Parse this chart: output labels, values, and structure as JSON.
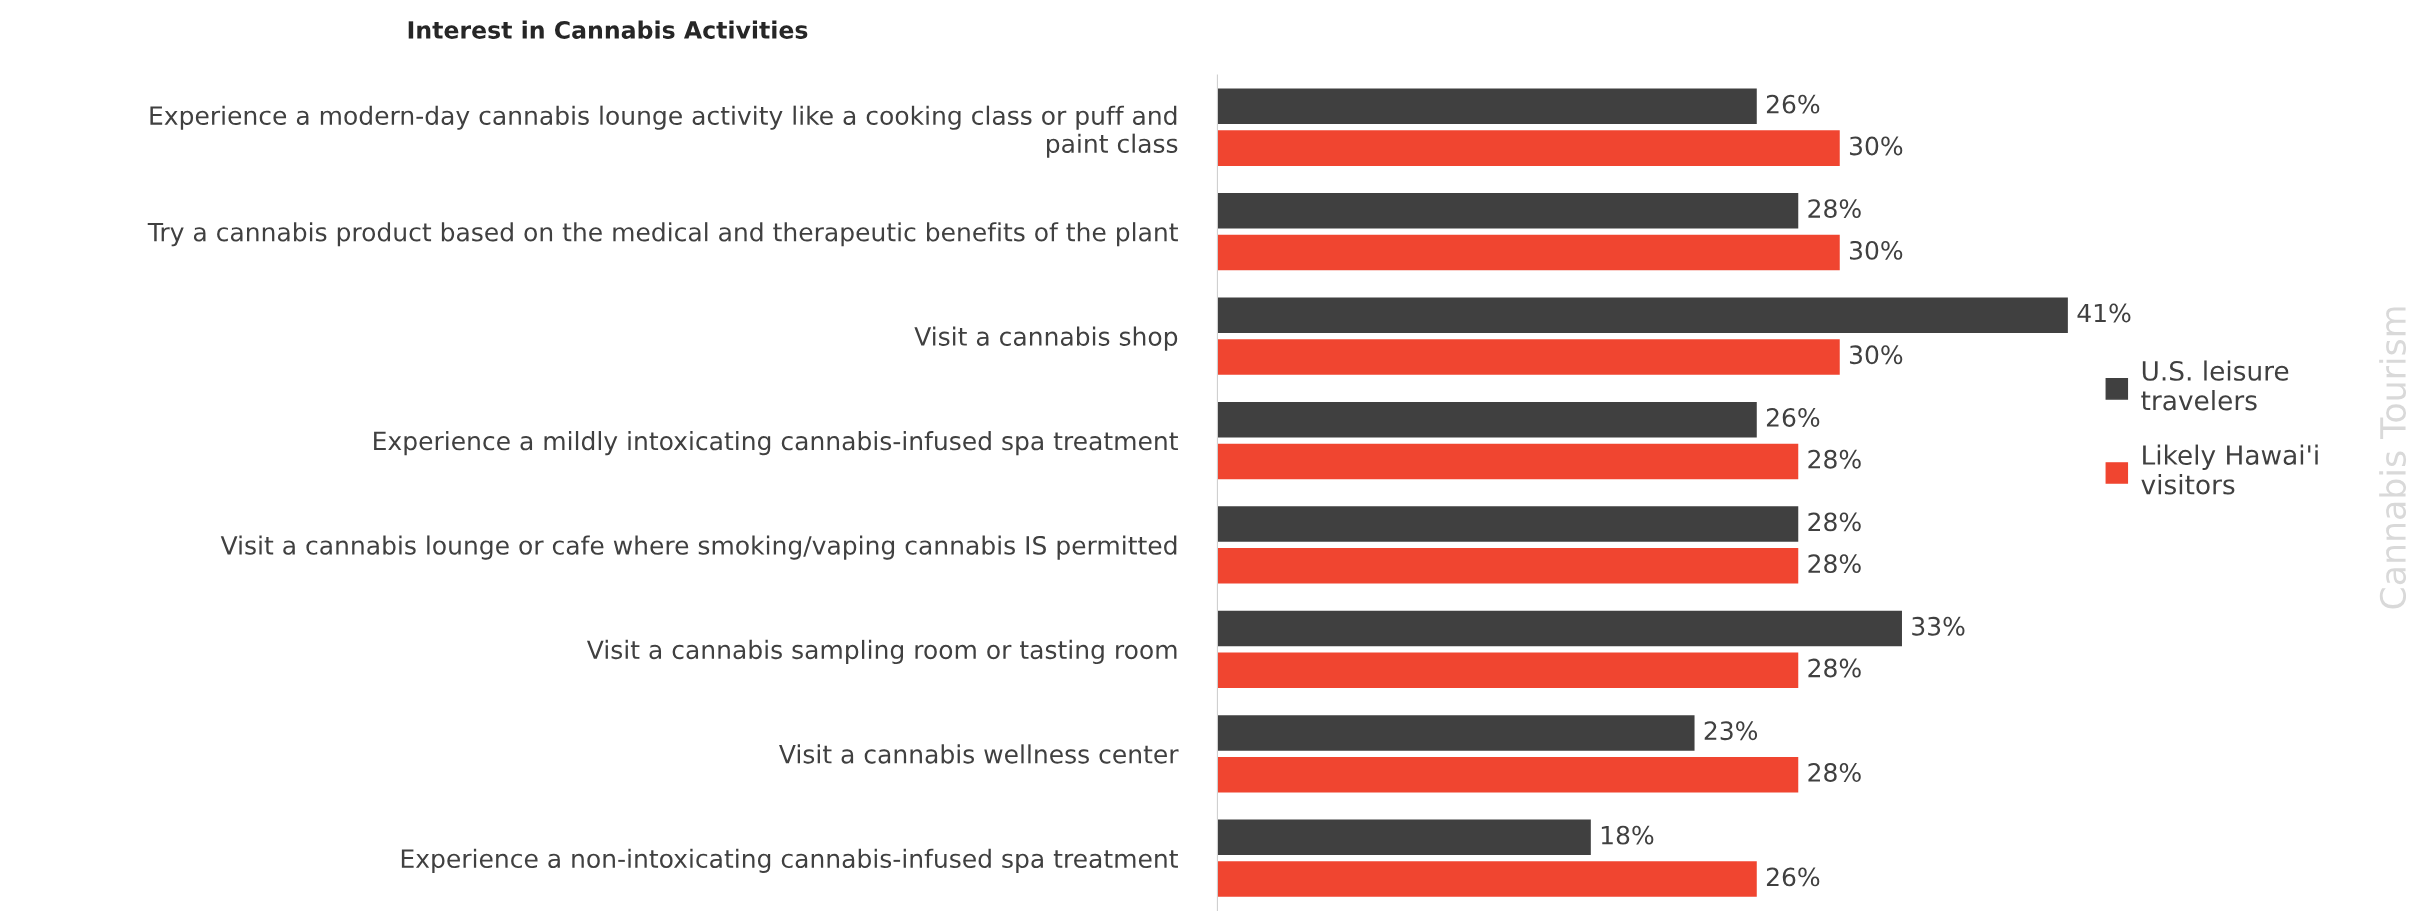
{
  "chart_data": {
    "type": "bar",
    "orientation": "horizontal",
    "title": "Interest in Cannabis Activities",
    "categories": [
      "Experience a modern-day cannabis lounge activity like a cooking class or puff and\npaint class",
      "Try a cannabis product based on the medical and therapeutic benefits of the plant",
      "Visit a cannabis shop",
      "Experience a mildly intoxicating cannabis-infused spa treatment",
      "Visit a cannabis lounge or cafe where smoking/vaping cannabis IS permitted",
      "Visit a cannabis sampling room or tasting room",
      "Visit a cannabis wellness center",
      "Experience a non-intoxicating cannabis-infused spa treatment"
    ],
    "series": [
      {
        "name": "U.S. leisure\ntravelers",
        "color": "#404040",
        "values": [
          26,
          28,
          41,
          26,
          28,
          33,
          23,
          18
        ],
        "value_labels": [
          "26%",
          "28%",
          "41%",
          "26%",
          "28%",
          "33%",
          "23%",
          "18%"
        ]
      },
      {
        "name": "Likely Hawai'i\nvisitors",
        "color": "#f04530",
        "values": [
          30,
          30,
          30,
          28,
          28,
          28,
          28,
          26
        ],
        "value_labels": [
          "30%",
          "30%",
          "30%",
          "28%",
          "28%",
          "28%",
          "28%",
          "26%"
        ]
      }
    ],
    "legend": "right",
    "grid": false,
    "annotations": [
      "Cannabis Tourism"
    ]
  }
}
